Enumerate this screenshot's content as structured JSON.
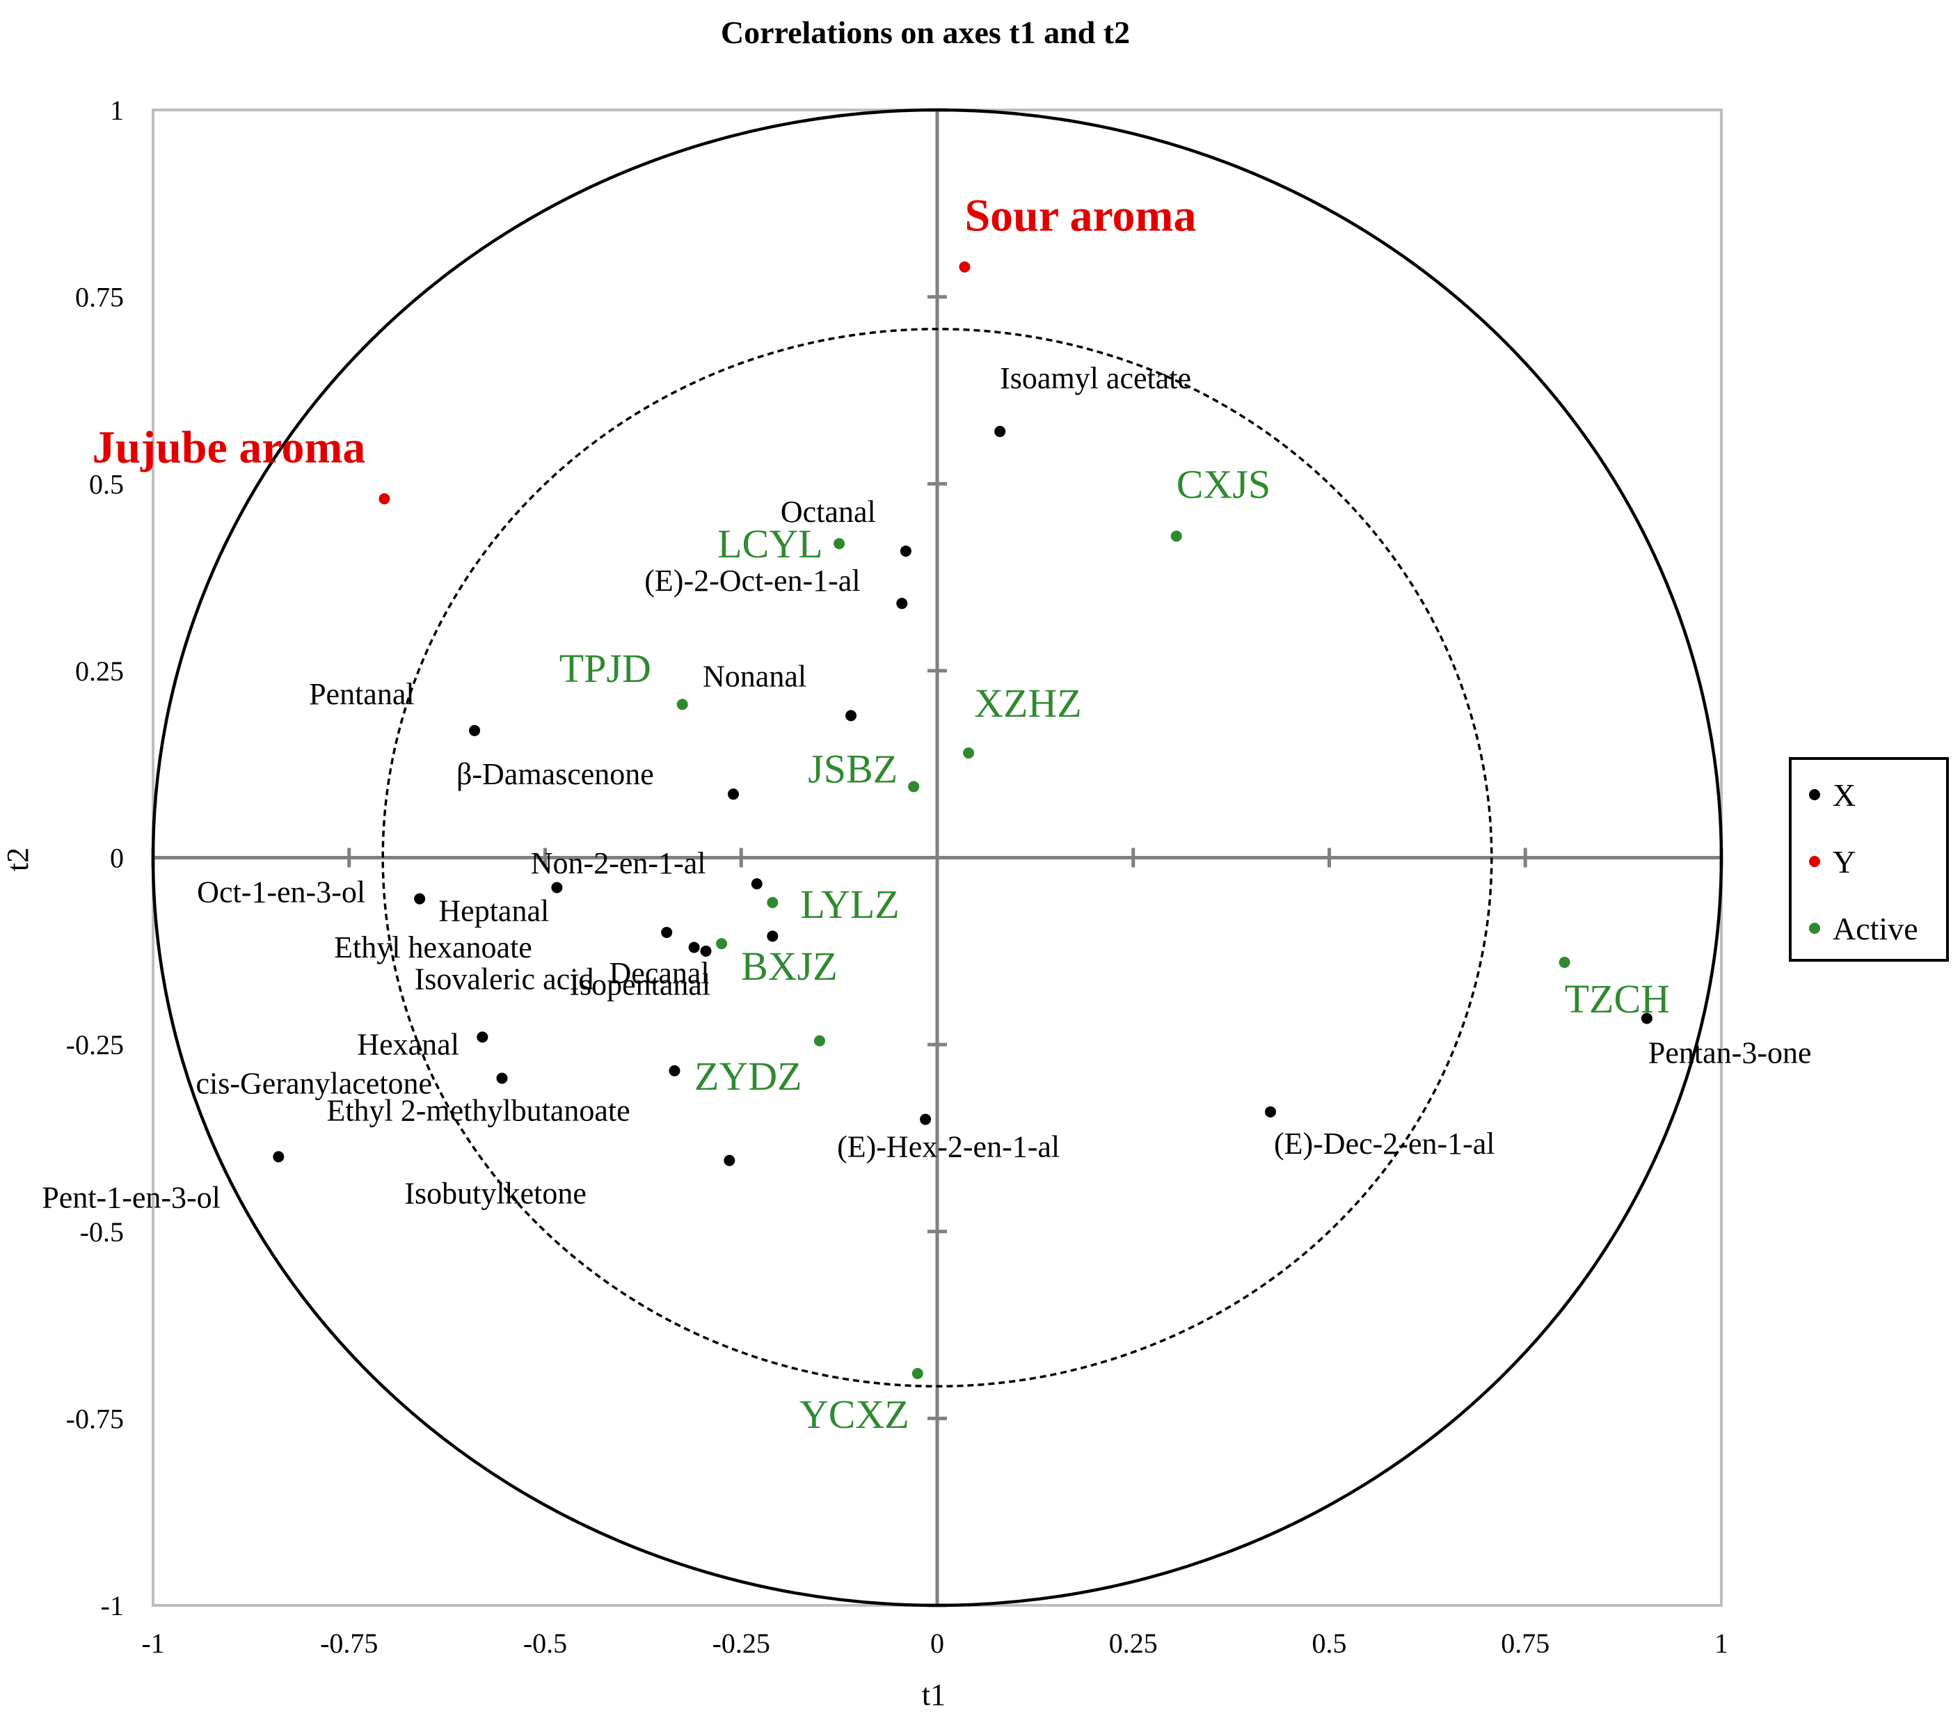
{
  "chart_data": {
    "type": "scatter",
    "title": "Correlations on axes t1 and t2",
    "xlabel": "t1",
    "ylabel": "t2",
    "xlim": [
      -1,
      1
    ],
    "ylim": [
      -1,
      1
    ],
    "x_ticks": [
      "-1",
      "-0.75",
      "-0.5",
      "-0.25",
      "0",
      "0.25",
      "0.5",
      "0.75",
      "1"
    ],
    "y_ticks": [
      "1",
      "0.75",
      "0.5",
      "0.25",
      "0",
      "-0.25",
      "-0.5",
      "-0.75",
      "-1"
    ],
    "circles": [
      {
        "radius": 1.0,
        "style": "solid"
      },
      {
        "radius": 0.707,
        "style": "dashed"
      }
    ],
    "legend_position": "right",
    "colors": {
      "X": "#000000",
      "Y": "#e00000",
      "Active": "#2f8a2f"
    },
    "series": [
      {
        "name": "X",
        "color": "#000000",
        "points": [
          {
            "label": "Isoamyl acetate",
            "x": 0.08,
            "y": 0.57
          },
          {
            "label": "Octanal",
            "x": -0.04,
            "y": 0.41
          },
          {
            "label": "(E)-2-Oct-en-1-al",
            "x": -0.045,
            "y": 0.34
          },
          {
            "label": "Nonanal",
            "x": -0.11,
            "y": 0.19
          },
          {
            "label": "Pentanal",
            "x": -0.59,
            "y": 0.17
          },
          {
            "label": "β-Damascenone",
            "x": -0.26,
            "y": 0.085
          },
          {
            "label": "Non-2-en-1-al",
            "x": -0.23,
            "y": -0.035
          },
          {
            "label": "Oct-1-en-3-ol",
            "x": -0.66,
            "y": -0.055
          },
          {
            "label": "Heptanal",
            "x": -0.485,
            "y": -0.04
          },
          {
            "label": "Ethyl hexanoate",
            "x": -0.345,
            "y": -0.1
          },
          {
            "label": "Isovaleric acid",
            "x": -0.31,
            "y": -0.12
          },
          {
            "label": "Decanal",
            "x": -0.295,
            "y": -0.125
          },
          {
            "label": "Isopentanal",
            "x": -0.21,
            "y": -0.105
          },
          {
            "label": "Hexanal",
            "x": -0.58,
            "y": -0.24
          },
          {
            "label": "cis-Geranylacetone",
            "x": -0.555,
            "y": -0.295
          },
          {
            "label": "Ethyl 2-methylbutanoate",
            "x": -0.335,
            "y": -0.285
          },
          {
            "label": "Pent-1-en-3-ol",
            "x": -0.84,
            "y": -0.4
          },
          {
            "label": "Isobutylketone",
            "x": -0.265,
            "y": -0.405
          },
          {
            "label": "(E)-Hex-2-en-1-al",
            "x": -0.015,
            "y": -0.35
          },
          {
            "label": "(E)-Dec-2-en-1-al",
            "x": 0.425,
            "y": -0.34
          },
          {
            "label": "Pentan-3-one",
            "x": 0.905,
            "y": -0.215
          }
        ]
      },
      {
        "name": "Y",
        "color": "#e00000",
        "points": [
          {
            "label": "Sour aroma",
            "x": 0.035,
            "y": 0.79
          },
          {
            "label": "Jujube aroma",
            "x": -0.705,
            "y": 0.48
          }
        ]
      },
      {
        "name": "Active",
        "color": "#2f8a2f",
        "points": [
          {
            "label": "CXJS",
            "x": 0.305,
            "y": 0.43
          },
          {
            "label": "LCYL",
            "x": -0.125,
            "y": 0.42
          },
          {
            "label": "TPJD",
            "x": -0.325,
            "y": 0.205
          },
          {
            "label": "XZHZ",
            "x": 0.04,
            "y": 0.14
          },
          {
            "label": "JSBZ",
            "x": -0.03,
            "y": 0.095
          },
          {
            "label": "LYLZ",
            "x": -0.21,
            "y": -0.06
          },
          {
            "label": "BXJZ",
            "x": -0.275,
            "y": -0.115
          },
          {
            "label": "ZYDZ",
            "x": -0.15,
            "y": -0.245
          },
          {
            "label": "YCXZ",
            "x": -0.025,
            "y": -0.69
          },
          {
            "label": "TZCH",
            "x": 0.8,
            "y": -0.14
          }
        ]
      }
    ]
  }
}
